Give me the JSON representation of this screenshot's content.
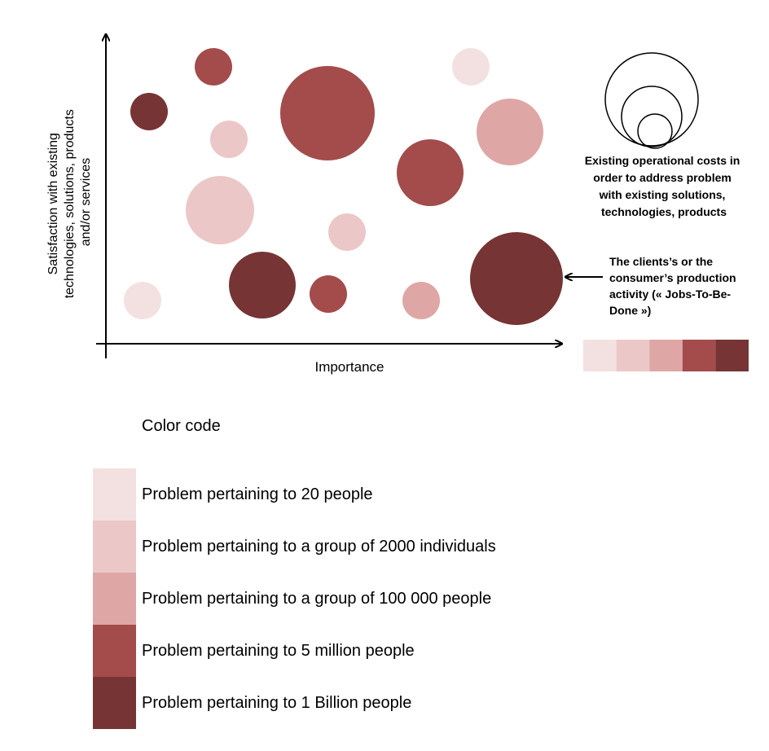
{
  "colors": {
    "level_1": "#f3e1e1",
    "level_2": "#ecc7c7",
    "level_3": "#dfa6a6",
    "level_4": "#a34c4b",
    "level_5": "#773434"
  },
  "diagram": {
    "y_axis_label": [
      "Satisfaction with existing",
      "technologies, solutions, products",
      "and/or services"
    ],
    "x_axis_label": "Importance",
    "annotation_costs": [
      "Existing operational costs in",
      "order to address problem",
      "with existing solutions,",
      "technologies, products"
    ],
    "annotation_jobs": [
      "The clients’s or the",
      "consumer’s production",
      "activity (« Jobs-To-Be-",
      "Done »)"
    ],
    "bubbles": [
      {
        "level": 4
      },
      {
        "level": 1
      },
      {
        "level": 5
      },
      {
        "level": 4
      },
      {
        "level": 2
      },
      {
        "level": 3
      },
      {
        "level": 4
      },
      {
        "level": 2
      },
      {
        "level": 2
      },
      {
        "level": 1
      },
      {
        "level": 5
      },
      {
        "level": 4
      },
      {
        "level": 3
      },
      {
        "level": 5
      }
    ],
    "color_scale": [
      "level_1",
      "level_2",
      "level_3",
      "level_4",
      "level_5"
    ]
  },
  "legend": {
    "title": "Color code",
    "items": [
      {
        "label": "Problem pertaining to 20 people",
        "color": "level_1"
      },
      {
        "label": "Problem pertaining to a group of 2000 individuals",
        "color": "level_2"
      },
      {
        "label": "Problem pertaining to a group of 100 000 people",
        "color": "level_3"
      },
      {
        "label": "Problem pertaining to 5 million people",
        "color": "level_4"
      },
      {
        "label": "Problem pertaining to 1 Billion people",
        "color": "level_5"
      }
    ]
  }
}
